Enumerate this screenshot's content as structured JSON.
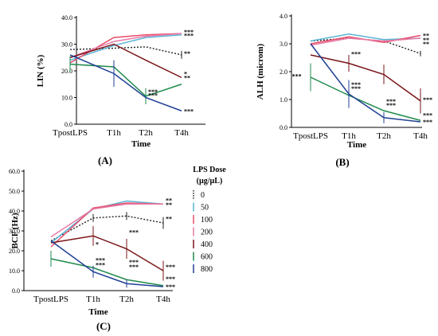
{
  "colors": {
    "0": "#222222",
    "50": "#5ab4d6",
    "100": "#e84d6a",
    "200": "#e87aa6",
    "400": "#7a1518",
    "600": "#1f8a4c",
    "800": "#1f3f95",
    "axis": "#000000"
  },
  "legend": {
    "title_line1": "LPS Dose",
    "title_line2": "(µg/µL)",
    "items": [
      {
        "key": "0",
        "label": "0",
        "dashed": true
      },
      {
        "key": "50",
        "label": "50"
      },
      {
        "key": "100",
        "label": "100"
      },
      {
        "key": "200",
        "label": "200"
      },
      {
        "key": "400",
        "label": "400"
      },
      {
        "key": "600",
        "label": "600"
      },
      {
        "key": "800",
        "label": "800"
      }
    ]
  },
  "chart_data": [
    {
      "type": "line",
      "panel": "(A)",
      "xlabel": "Time",
      "ylabel": "LIN (%)",
      "categories": [
        "TpostLPS",
        "T1h",
        "T2h",
        "T4h"
      ],
      "ylim": [
        0,
        40
      ],
      "yticks": [
        0,
        10,
        20,
        30,
        40
      ],
      "yticklabels": [
        "0.0",
        "10.0",
        "20.0",
        "30.0",
        "40.0"
      ],
      "series": [
        {
          "key": "0",
          "values": [
            28,
            28.5,
            29,
            26
          ],
          "err": [
            [
              0,
              0
            ],
            [
              0,
              0
            ],
            [
              0,
              0
            ],
            [
              1.5,
              1.5
            ]
          ]
        },
        {
          "key": "50",
          "values": [
            24,
            29.5,
            32.5,
            33.5
          ],
          "err": [
            [
              0,
              0
            ],
            [
              0,
              0
            ],
            [
              0,
              0
            ],
            [
              0,
              0
            ]
          ]
        },
        {
          "key": "100",
          "values": [
            23,
            32.5,
            33.5,
            34
          ],
          "err": [
            [
              0,
              0
            ],
            [
              0,
              0
            ],
            [
              0,
              0
            ],
            [
              0,
              0
            ]
          ]
        },
        {
          "key": "200",
          "values": [
            25,
            31,
            33,
            34
          ],
          "err": [
            [
              0,
              0
            ],
            [
              0,
              0
            ],
            [
              0,
              0
            ],
            [
              0,
              0
            ]
          ]
        },
        {
          "key": "400",
          "values": [
            25,
            30,
            24,
            17.5
          ],
          "err": [
            [
              0,
              0
            ],
            [
              0,
              0
            ],
            [
              0,
              0
            ],
            [
              0,
              0
            ]
          ]
        },
        {
          "key": "600",
          "values": [
            22.5,
            21.5,
            10.5,
            15
          ],
          "err": [
            [
              3,
              3
            ],
            [
              0,
              0
            ],
            [
              3,
              3
            ],
            [
              0,
              0
            ]
          ]
        },
        {
          "key": "800",
          "values": [
            26,
            19,
            10,
            5
          ],
          "err": [
            [
              0,
              0
            ],
            [
              5,
              5
            ],
            [
              0,
              0
            ],
            [
              0,
              0
            ]
          ]
        }
      ],
      "annotations": [
        {
          "x": 3,
          "y": 34.6,
          "text": "***"
        },
        {
          "x": 3,
          "y": 33.3,
          "text": "***"
        },
        {
          "x": 3,
          "y": 26.6,
          "text": "**"
        },
        {
          "x": 2,
          "y": 12.3,
          "text": "***"
        },
        {
          "x": 2,
          "y": 10.9,
          "text": "***"
        },
        {
          "x": 3,
          "y": 19.0,
          "text": "*"
        },
        {
          "x": 3,
          "y": 17.5,
          "text": "**"
        },
        {
          "x": 3,
          "y": 5.0,
          "text": "***"
        }
      ]
    },
    {
      "type": "line",
      "panel": "(B)",
      "xlabel": "Time",
      "ylabel": "ALH (microm)",
      "categories": [
        "TpostLPS",
        "T1h",
        "T2h",
        "T4h"
      ],
      "ylim": [
        0,
        4
      ],
      "yticks": [
        0,
        1,
        2,
        3,
        4
      ],
      "yticklabels": [
        "0.0",
        "1.0",
        "2.0",
        "3.0",
        "4.0"
      ],
      "series": [
        {
          "key": "0",
          "values": [
            3.1,
            3.2,
            3.1,
            2.65
          ],
          "err": [
            [
              0,
              0
            ],
            [
              0,
              0
            ],
            [
              0,
              0
            ],
            [
              0.1,
              0.1
            ]
          ]
        },
        {
          "key": "50",
          "values": [
            3.1,
            3.35,
            3.15,
            3.2
          ],
          "err": [
            [
              0,
              0
            ],
            [
              0,
              0
            ],
            [
              0,
              0
            ],
            [
              0,
              0
            ]
          ]
        },
        {
          "key": "100",
          "values": [
            3.0,
            3.25,
            3.05,
            3.3
          ],
          "err": [
            [
              0,
              0
            ],
            [
              0,
              0
            ],
            [
              0,
              0
            ],
            [
              0,
              0
            ]
          ]
        },
        {
          "key": "200",
          "values": [
            2.95,
            3.2,
            3.1,
            3.2
          ],
          "err": [
            [
              0,
              0
            ],
            [
              0,
              0
            ],
            [
              0,
              0
            ],
            [
              0,
              0
            ]
          ]
        },
        {
          "key": "400",
          "values": [
            2.6,
            2.3,
            1.9,
            0.95
          ],
          "err": [
            [
              0,
              0
            ],
            [
              0.3,
              0.3
            ],
            [
              0.35,
              0.35
            ],
            [
              0.45,
              0.45
            ]
          ]
        },
        {
          "key": "600",
          "values": [
            1.8,
            1.15,
            0.6,
            0.25
          ],
          "err": [
            [
              0.5,
              0.5
            ],
            [
              0,
              0
            ],
            [
              0,
              0
            ],
            [
              0,
              0
            ]
          ]
        },
        {
          "key": "800",
          "values": [
            3.0,
            1.2,
            0.35,
            0.2
          ],
          "err": [
            [
              0,
              0
            ],
            [
              0.5,
              0.5
            ],
            [
              0.2,
              0.2
            ],
            [
              0,
              0
            ]
          ]
        }
      ],
      "annotations": [
        {
          "x": 3,
          "y": 3.3,
          "text": "**"
        },
        {
          "x": 3,
          "y": 3.15,
          "text": "**"
        },
        {
          "x": 3,
          "y": 3.0,
          "text": "**"
        },
        {
          "x": 1,
          "y": 2.65,
          "text": "***"
        },
        {
          "x": 0,
          "y": 1.85,
          "text": "***",
          "dx": -0.55
        },
        {
          "x": 1,
          "y": 1.55,
          "text": "***"
        },
        {
          "x": 1,
          "y": 1.4,
          "text": "***"
        },
        {
          "x": 2,
          "y": 0.95,
          "text": "***"
        },
        {
          "x": 2,
          "y": 0.8,
          "text": "***"
        },
        {
          "x": 3,
          "y": 1.0,
          "text": "***"
        },
        {
          "x": 3,
          "y": 0.45,
          "text": "***"
        },
        {
          "x": 3,
          "y": 0.2,
          "text": "***"
        }
      ]
    },
    {
      "type": "line",
      "panel": "(C)",
      "xlabel": "Time",
      "ylabel": "BCF (Hz)",
      "categories": [
        "TpostLPS",
        "T1h",
        "T2h",
        "T4h"
      ],
      "ylim": [
        0,
        60
      ],
      "yticks": [
        0,
        10,
        20,
        30,
        40,
        50,
        60
      ],
      "yticklabels": [
        "0.0",
        "10.0",
        "20.0",
        "30.0",
        "40.0",
        "50.0",
        "60.0"
      ],
      "series": [
        {
          "key": "0",
          "values": [
            25,
            36.5,
            37.5,
            34
          ],
          "err": [
            [
              0,
              0
            ],
            [
              2,
              2
            ],
            [
              2,
              2
            ],
            [
              3,
              3
            ]
          ]
        },
        {
          "key": "50",
          "values": [
            24,
            41,
            45,
            43.5
          ],
          "err": [
            [
              0,
              0
            ],
            [
              0,
              0
            ],
            [
              0,
              0
            ],
            [
              0,
              0
            ]
          ]
        },
        {
          "key": "100",
          "values": [
            22,
            41.5,
            44,
            43.5
          ],
          "err": [
            [
              0,
              0
            ],
            [
              0,
              0
            ],
            [
              0,
              0
            ],
            [
              0,
              0
            ]
          ]
        },
        {
          "key": "200",
          "values": [
            27,
            41,
            43.5,
            43.5
          ],
          "err": [
            [
              0,
              0
            ],
            [
              0,
              0
            ],
            [
              0,
              0
            ],
            [
              0,
              0
            ]
          ]
        },
        {
          "key": "400",
          "values": [
            24,
            27.5,
            21,
            10
          ],
          "err": [
            [
              0,
              0
            ],
            [
              5,
              5
            ],
            [
              5,
              5
            ],
            [
              5,
              5
            ]
          ]
        },
        {
          "key": "600",
          "values": [
            16,
            11.5,
            5.5,
            2.5
          ],
          "err": [
            [
              4,
              4
            ],
            [
              0,
              0
            ],
            [
              0,
              0
            ],
            [
              0,
              0
            ]
          ]
        },
        {
          "key": "800",
          "values": [
            25,
            9.5,
            3.5,
            2
          ],
          "err": [
            [
              0,
              0
            ],
            [
              3,
              3
            ],
            [
              2,
              2
            ],
            [
              0,
              0
            ]
          ]
        }
      ],
      "annotations": [
        {
          "x": 3,
          "y": 45.5,
          "text": "**"
        },
        {
          "x": 3,
          "y": 43.3,
          "text": "**"
        },
        {
          "x": 3,
          "y": 36.2,
          "text": "**"
        },
        {
          "x": 1,
          "y": 23.5,
          "text": "*"
        },
        {
          "x": 2,
          "y": 29.5,
          "text": "***"
        },
        {
          "x": 1,
          "y": 15.5,
          "text": "***"
        },
        {
          "x": 1,
          "y": 13.0,
          "text": "***"
        },
        {
          "x": 2,
          "y": 14.5,
          "text": "***"
        },
        {
          "x": 2,
          "y": 12.0,
          "text": "***"
        },
        {
          "x": 3,
          "y": 12.0,
          "text": "***"
        },
        {
          "x": 3,
          "y": 6.0,
          "text": "***"
        },
        {
          "x": 3,
          "y": 2.0,
          "text": "***"
        }
      ]
    }
  ]
}
